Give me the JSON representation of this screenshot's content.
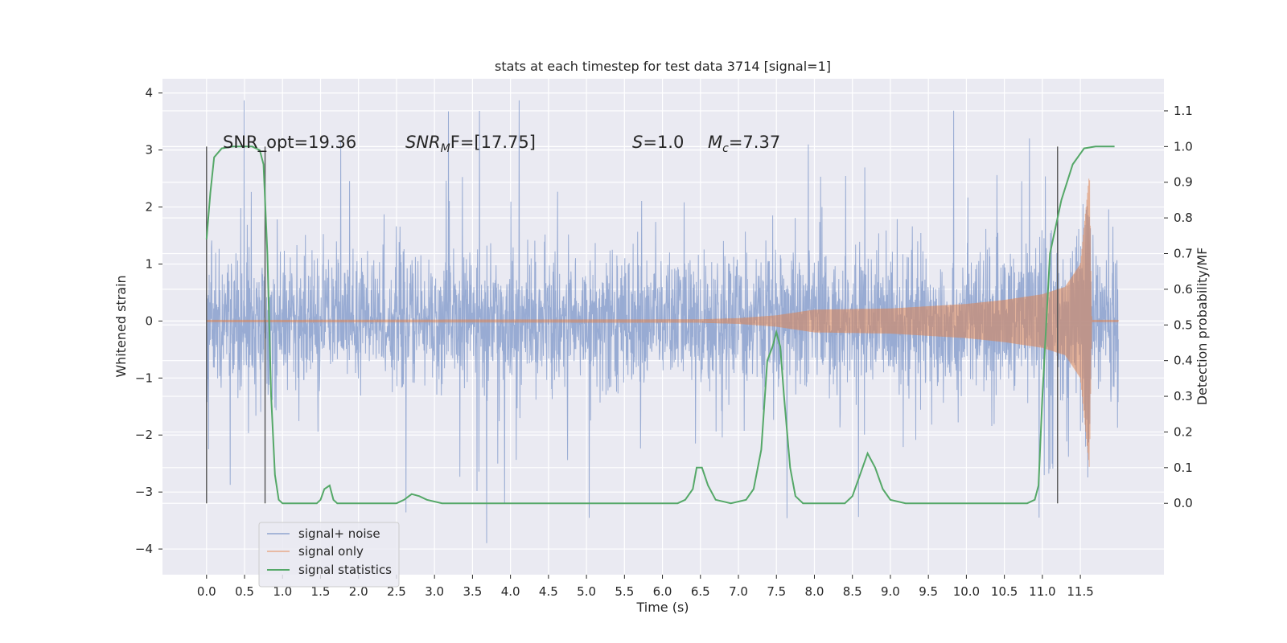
{
  "chart_data": {
    "type": "line",
    "title": "stats at each timestep for test data 3714 [signal=1]",
    "xlabel": "Time (s)",
    "ylabel_left": "Whitened strain",
    "ylabel_right": "Detection probability/MF",
    "xlim": [
      -0.58,
      12.6
    ],
    "ylim_left": [
      -4.45,
      4.25
    ],
    "ylim_right": [
      -0.2,
      1.19
    ],
    "x_ticks": [
      "0.0",
      "0.5",
      "1.0",
      "1.5",
      "2.0",
      "2.5",
      "3.0",
      "3.5",
      "4.0",
      "4.5",
      "5.0",
      "5.5",
      "6.0",
      "6.5",
      "7.0",
      "7.5",
      "8.0",
      "8.5",
      "9.0",
      "9.5",
      "10.0",
      "10.5",
      "11.0",
      "11.5"
    ],
    "y_ticks_left": [
      "−4",
      "−3",
      "−2",
      "−1",
      "0",
      "1",
      "2",
      "3",
      "4"
    ],
    "y_ticks_right": [
      "0.0",
      "0.1",
      "0.2",
      "0.3",
      "0.4",
      "0.5",
      "0.6",
      "0.7",
      "0.8",
      "0.9",
      "1.0",
      "1.1"
    ],
    "grid": true,
    "legend_position": "bottom-left",
    "annotations": {
      "snr_opt": "SNR_opt=19.36",
      "snr_mf_main": "SNR",
      "snr_mf_sub": "M",
      "snr_mf_tail": "F=[17.75]",
      "s_var": "S",
      "s_val": "=1.0",
      "mc_var": "M",
      "mc_sub": "c",
      "mc_val": "=7.37"
    },
    "vertical_markers_x": [
      0.0,
      0.77,
      11.2
    ],
    "series": [
      {
        "name": "signal+ noise",
        "color": "#8fa4cf",
        "axis": "left",
        "description": "whitened strain, noise-dominated; typical range about ±1.2 with peaks to about ±3.8",
        "x_range": [
          0.0,
          12.0
        ],
        "approx_extremes": {
          "max": 3.87,
          "min": -4.06
        }
      },
      {
        "name": "signal only",
        "color": "#dd8452",
        "axis": "left",
        "envelope_points": [
          {
            "x": 0.0,
            "amp": 0.02
          },
          {
            "x": 6.5,
            "amp": 0.03
          },
          {
            "x": 7.0,
            "amp": 0.05
          },
          {
            "x": 7.5,
            "amp": 0.1
          },
          {
            "x": 8.0,
            "amp": 0.2
          },
          {
            "x": 9.0,
            "amp": 0.22
          },
          {
            "x": 10.0,
            "amp": 0.3
          },
          {
            "x": 10.5,
            "amp": 0.37
          },
          {
            "x": 11.0,
            "amp": 0.47
          },
          {
            "x": 11.3,
            "amp": 0.6
          },
          {
            "x": 11.5,
            "amp": 1.0
          },
          {
            "x": 11.62,
            "amp": 2.6
          },
          {
            "x": 11.65,
            "amp": 0.02
          },
          {
            "x": 12.0,
            "amp": 0.02
          }
        ]
      },
      {
        "name": "signal statistics",
        "color": "#55a868",
        "axis": "right",
        "points": [
          [
            0.0,
            0.74
          ],
          [
            0.05,
            0.87
          ],
          [
            0.1,
            0.97
          ],
          [
            0.2,
            0.995
          ],
          [
            0.35,
            1.0
          ],
          [
            0.6,
            1.0
          ],
          [
            0.7,
            0.99
          ],
          [
            0.75,
            0.95
          ],
          [
            0.8,
            0.7
          ],
          [
            0.85,
            0.3
          ],
          [
            0.9,
            0.08
          ],
          [
            0.95,
            0.01
          ],
          [
            1.0,
            0.0
          ],
          [
            1.45,
            0.0
          ],
          [
            1.5,
            0.01
          ],
          [
            1.55,
            0.04
          ],
          [
            1.62,
            0.05
          ],
          [
            1.67,
            0.01
          ],
          [
            1.72,
            0.0
          ],
          [
            2.5,
            0.0
          ],
          [
            2.6,
            0.01
          ],
          [
            2.7,
            0.026
          ],
          [
            2.8,
            0.02
          ],
          [
            2.9,
            0.01
          ],
          [
            3.1,
            0.0
          ],
          [
            6.2,
            0.0
          ],
          [
            6.3,
            0.01
          ],
          [
            6.4,
            0.04
          ],
          [
            6.45,
            0.1
          ],
          [
            6.52,
            0.1
          ],
          [
            6.6,
            0.05
          ],
          [
            6.7,
            0.01
          ],
          [
            6.9,
            0.0
          ],
          [
            7.1,
            0.01
          ],
          [
            7.2,
            0.04
          ],
          [
            7.3,
            0.15
          ],
          [
            7.38,
            0.4
          ],
          [
            7.45,
            0.44
          ],
          [
            7.5,
            0.48
          ],
          [
            7.55,
            0.44
          ],
          [
            7.6,
            0.3
          ],
          [
            7.68,
            0.1
          ],
          [
            7.75,
            0.02
          ],
          [
            7.85,
            0.0
          ],
          [
            8.4,
            0.0
          ],
          [
            8.5,
            0.02
          ],
          [
            8.6,
            0.08
          ],
          [
            8.7,
            0.14
          ],
          [
            8.8,
            0.1
          ],
          [
            8.9,
            0.04
          ],
          [
            9.0,
            0.01
          ],
          [
            9.2,
            0.0
          ],
          [
            10.8,
            0.0
          ],
          [
            10.9,
            0.01
          ],
          [
            10.95,
            0.05
          ],
          [
            11.0,
            0.3
          ],
          [
            11.1,
            0.7
          ],
          [
            11.25,
            0.85
          ],
          [
            11.4,
            0.95
          ],
          [
            11.55,
            0.995
          ],
          [
            11.7,
            1.0
          ],
          [
            11.95,
            1.0
          ]
        ]
      }
    ]
  }
}
